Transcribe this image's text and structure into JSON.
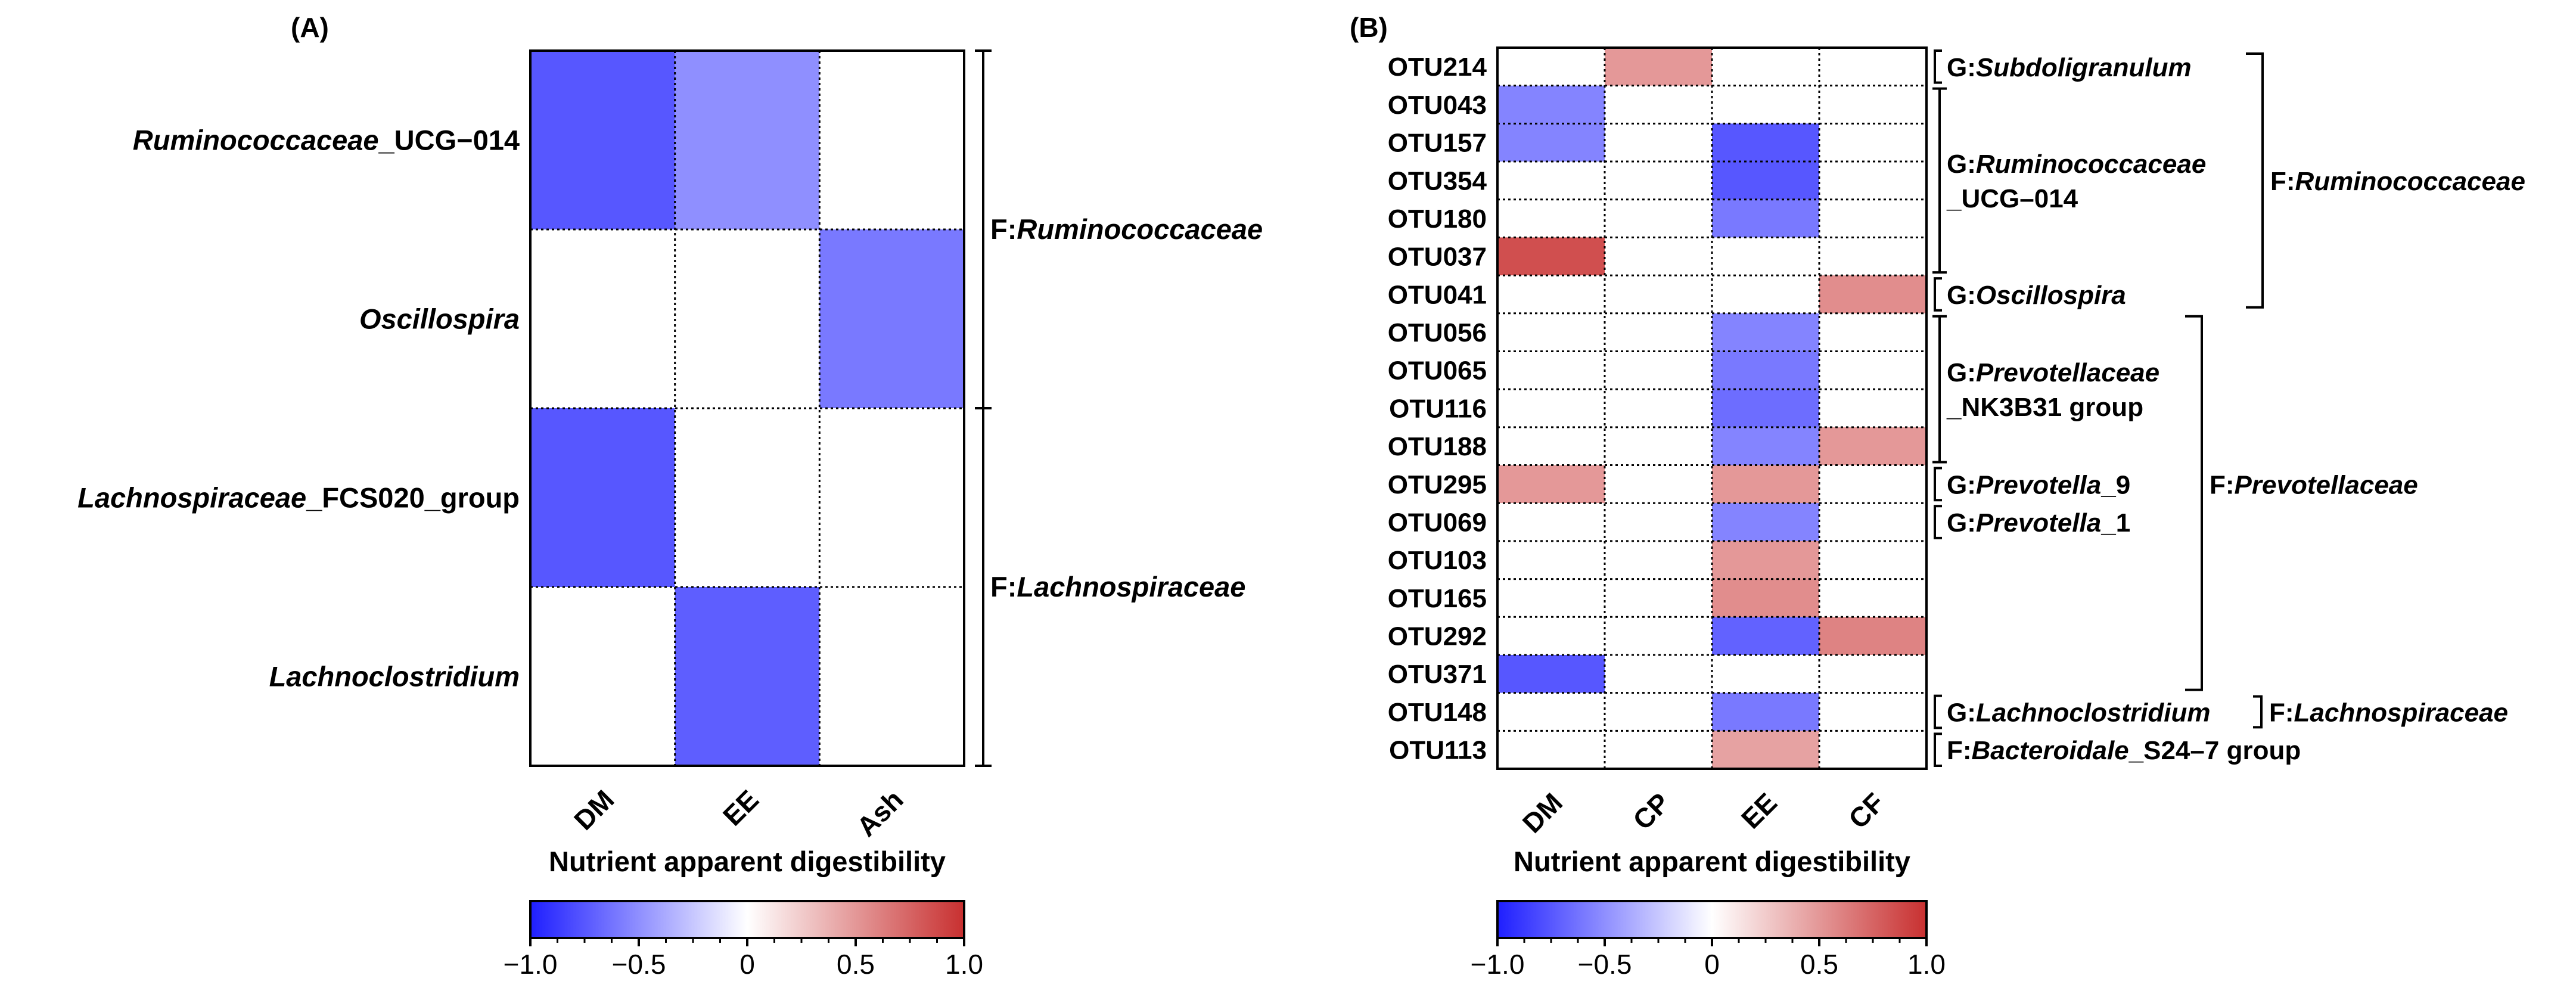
{
  "chart_data": [
    {
      "type": "heatmap",
      "panel_label": "(A)",
      "rows": [
        "Ruminococcaceae_UCG−014",
        "Oscillospira",
        "Lachnospiraceae_FCS020_group",
        "Lachnoclostridium"
      ],
      "row_labels": [
        [
          {
            "t": "Ruminococcaceae",
            "i": true
          },
          {
            "t": "_UCG−014",
            "i": false
          }
        ],
        [
          {
            "t": "Oscillospira",
            "i": true
          }
        ],
        [
          {
            "t": "Lachnospiraceae",
            "i": true
          },
          {
            "t": "_FCS020_group",
            "i": false
          }
        ],
        [
          {
            "t": "Lachnoclostridium",
            "i": true
          }
        ]
      ],
      "columns": [
        "DM",
        "EE",
        "Ash"
      ],
      "values": [
        [
          -0.75,
          -0.5,
          0
        ],
        [
          0,
          0,
          -0.6
        ],
        [
          -0.75,
          0,
          0
        ],
        [
          0,
          -0.72,
          0
        ]
      ],
      "families": [
        {
          "label": [
            {
              "t": "F:",
              "i": false
            },
            {
              "t": "Ruminococcaceae",
              "i": true
            }
          ],
          "rows": [
            0,
            1
          ]
        },
        {
          "label": [
            {
              "t": "F:",
              "i": false
            },
            {
              "t": "Lachnospiraceae",
              "i": true
            }
          ],
          "rows": [
            2,
            3
          ]
        }
      ],
      "xlabel": "Nutrient apparent digestibility",
      "colorbar": {
        "min": -1.0,
        "max": 1.0,
        "ticks": [
          -1.0,
          -0.5,
          0,
          0.5,
          1.0
        ],
        "tick_labels": [
          "−1.0",
          "−0.5",
          "0",
          "0.5",
          "1.0"
        ]
      },
      "colors": {
        "low": "#1f1fff",
        "mid": "#ffffff",
        "high": "#c83030"
      },
      "grid": "dotted"
    },
    {
      "type": "heatmap",
      "panel_label": "(B)",
      "rows": [
        "OTU214",
        "OTU043",
        "OTU157",
        "OTU354",
        "OTU180",
        "OTU037",
        "OTU041",
        "OTU056",
        "OTU065",
        "OTU116",
        "OTU188",
        "OTU295",
        "OTU069",
        "OTU103",
        "OTU165",
        "OTU292",
        "OTU371",
        "OTU148",
        "OTU113"
      ],
      "columns": [
        "DM",
        "CP",
        "EE",
        "CF"
      ],
      "values": [
        [
          0,
          0.5,
          0,
          0
        ],
        [
          -0.55,
          0,
          0,
          0
        ],
        [
          -0.55,
          0,
          -0.75,
          0
        ],
        [
          0,
          0,
          -0.75,
          0
        ],
        [
          0,
          0,
          -0.6,
          0
        ],
        [
          0.85,
          0,
          0,
          0
        ],
        [
          0,
          0,
          0,
          0.55
        ],
        [
          0,
          0,
          -0.55,
          0
        ],
        [
          0,
          0,
          -0.6,
          0
        ],
        [
          0,
          0,
          -0.65,
          0
        ],
        [
          0,
          0,
          -0.55,
          0.5
        ],
        [
          0.5,
          0,
          0.5,
          0
        ],
        [
          0,
          0,
          -0.55,
          0
        ],
        [
          0,
          0,
          0.5,
          0
        ],
        [
          0,
          0,
          0.55,
          0
        ],
        [
          0,
          0,
          -0.7,
          0.6
        ],
        [
          -0.75,
          0,
          0,
          0
        ],
        [
          0,
          0,
          -0.6,
          0
        ],
        [
          0,
          0,
          0.45,
          0
        ]
      ],
      "genera": [
        {
          "rows": [
            0,
            0
          ],
          "lines": [
            [
              {
                "t": "G:",
                "i": false
              },
              {
                "t": "Subdoligranulum",
                "i": true
              }
            ]
          ]
        },
        {
          "rows": [
            1,
            5
          ],
          "lines": [
            [
              {
                "t": "G:",
                "i": false
              },
              {
                "t": "Ruminococcaceae",
                "i": true
              }
            ],
            [
              {
                "t": "_UCG–014",
                "i": false
              }
            ]
          ]
        },
        {
          "rows": [
            6,
            6
          ],
          "lines": [
            [
              {
                "t": "G:",
                "i": false
              },
              {
                "t": "Oscillospira",
                "i": true
              }
            ]
          ]
        },
        {
          "rows": [
            7,
            10
          ],
          "lines": [
            [
              {
                "t": "G:",
                "i": false
              },
              {
                "t": "Prevotellaceae",
                "i": true
              }
            ],
            [
              {
                "t": "_NK3B31 group",
                "i": false
              }
            ]
          ]
        },
        {
          "rows": [
            11,
            11
          ],
          "lines": [
            [
              {
                "t": "G:",
                "i": false
              },
              {
                "t": "Prevotella",
                "i": true
              },
              {
                "t": "_9",
                "i": false
              }
            ]
          ]
        },
        {
          "rows": [
            12,
            12
          ],
          "lines": [
            [
              {
                "t": "G:",
                "i": false
              },
              {
                "t": "Prevotella",
                "i": true
              },
              {
                "t": "_1",
                "i": false
              }
            ]
          ]
        },
        {
          "rows": [
            17,
            17
          ],
          "lines": [
            [
              {
                "t": "G:",
                "i": false
              },
              {
                "t": "Lachnoclostridium",
                "i": true
              }
            ]
          ]
        },
        {
          "rows": [
            18,
            18
          ],
          "lines": [
            [
              {
                "t": "F:",
                "i": false
              },
              {
                "t": "Bacteroidale",
                "i": true
              },
              {
                "t": "_S24–7 group",
                "i": false
              }
            ]
          ]
        }
      ],
      "families": [
        {
          "rows": [
            0,
            6
          ],
          "label": [
            {
              "t": "F:",
              "i": false
            },
            {
              "t": "Ruminococcaceae",
              "i": true
            }
          ]
        },
        {
          "rows": [
            7,
            16
          ],
          "label": [
            {
              "t": "F:",
              "i": false
            },
            {
              "t": "Prevotellaceae",
              "i": true
            }
          ]
        },
        {
          "rows": [
            17,
            17
          ],
          "label": [
            {
              "t": "F:",
              "i": false
            },
            {
              "t": "Lachnospiraceae",
              "i": true
            }
          ]
        }
      ],
      "xlabel": "Nutrient apparent digestibility",
      "colorbar": {
        "min": -1.0,
        "max": 1.0,
        "ticks": [
          -1.0,
          -0.5,
          0,
          0.5,
          1.0
        ],
        "tick_labels": [
          "−1.0",
          "−0.5",
          "0",
          "0.5",
          "1.0"
        ]
      },
      "colors": {
        "low": "#1f1fff",
        "mid": "#ffffff",
        "high": "#c83030"
      },
      "grid": "dotted"
    }
  ]
}
